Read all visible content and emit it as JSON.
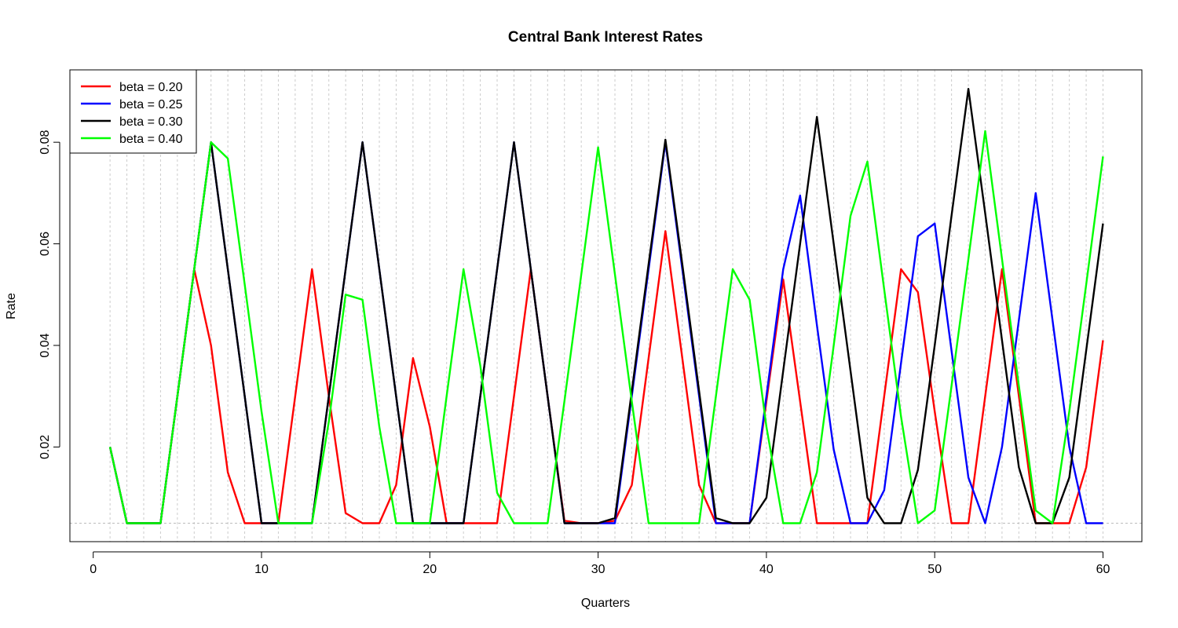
{
  "chart_data": {
    "type": "line",
    "title": "Central Bank Interest Rates",
    "xlabel": "Quarters",
    "ylabel": "Rate",
    "xlim": [
      1,
      60
    ],
    "ylim": [
      0.005,
      0.091
    ],
    "x_ticks": [
      0,
      10,
      20,
      30,
      40,
      50,
      60
    ],
    "y_ticks": [
      0.02,
      0.04,
      0.06,
      0.08
    ],
    "y_tick_labels": [
      "0.02",
      "0.04",
      "0.06",
      "0.08"
    ],
    "grid": "vertical dotted lines at each quarter",
    "reference_line": 0.005,
    "legend_position": "top-left",
    "x": [
      1,
      2,
      3,
      4,
      5,
      6,
      7,
      8,
      9,
      10,
      11,
      12,
      13,
      14,
      15,
      16,
      17,
      18,
      19,
      20,
      21,
      22,
      23,
      24,
      25,
      26,
      27,
      28,
      29,
      30,
      31,
      32,
      33,
      34,
      35,
      36,
      37,
      38,
      39,
      40,
      41,
      42,
      43,
      44,
      45,
      46,
      47,
      48,
      49,
      50,
      51,
      52,
      53,
      54,
      55,
      56,
      57,
      58,
      59,
      60
    ],
    "series": [
      {
        "name": "beta = 0.20",
        "color": "#ff0000",
        "values": [
          0.02,
          0.005,
          0.005,
          0.005,
          0.03,
          0.055,
          0.04,
          0.015,
          0.005,
          0.005,
          0.005,
          0.03,
          0.055,
          0.03,
          0.007,
          0.005,
          0.005,
          0.0125,
          0.0375,
          0.024,
          0.005,
          0.005,
          0.005,
          0.005,
          0.03,
          0.055,
          0.03,
          0.0055,
          0.005,
          0.005,
          0.0055,
          0.0125,
          0.0375,
          0.0625,
          0.0375,
          0.0125,
          0.005,
          0.005,
          0.005,
          0.029,
          0.053,
          0.029,
          0.005,
          0.005,
          0.005,
          0.005,
          0.03,
          0.055,
          0.0505,
          0.027,
          0.005,
          0.005,
          0.03,
          0.055,
          0.03,
          0.005,
          0.005,
          0.005,
          0.016,
          0.041
        ]
      },
      {
        "name": "beta = 0.25",
        "color": "#0000ff",
        "values": [
          0.02,
          0.005,
          0.005,
          0.005,
          0.03,
          0.055,
          0.08,
          0.055,
          0.03,
          0.005,
          0.005,
          0.005,
          0.005,
          0.03,
          0.055,
          0.08,
          0.055,
          0.03,
          0.005,
          0.005,
          0.005,
          0.005,
          0.03,
          0.055,
          0.08,
          0.055,
          0.03,
          0.005,
          0.005,
          0.005,
          0.005,
          0.03,
          0.055,
          0.08,
          0.055,
          0.03,
          0.005,
          0.005,
          0.005,
          0.03,
          0.055,
          0.0695,
          0.044,
          0.0195,
          0.005,
          0.005,
          0.0115,
          0.0365,
          0.0615,
          0.064,
          0.039,
          0.014,
          0.005,
          0.02,
          0.045,
          0.07,
          0.045,
          0.02,
          0.005,
          0.005
        ]
      },
      {
        "name": "beta = 0.30",
        "color": "#000000",
        "values": [
          0.02,
          0.005,
          0.005,
          0.005,
          0.03,
          0.055,
          0.08,
          0.055,
          0.03,
          0.005,
          0.005,
          0.005,
          0.005,
          0.03,
          0.055,
          0.08,
          0.055,
          0.03,
          0.005,
          0.005,
          0.005,
          0.005,
          0.03,
          0.055,
          0.08,
          0.055,
          0.03,
          0.005,
          0.005,
          0.005,
          0.006,
          0.031,
          0.056,
          0.0805,
          0.056,
          0.031,
          0.006,
          0.005,
          0.005,
          0.01,
          0.035,
          0.06,
          0.085,
          0.06,
          0.035,
          0.01,
          0.005,
          0.005,
          0.0155,
          0.04,
          0.0655,
          0.0905,
          0.066,
          0.041,
          0.016,
          0.005,
          0.005,
          0.014,
          0.039,
          0.064
        ]
      },
      {
        "name": "beta = 0.40",
        "color": "#00ff00",
        "values": [
          0.02,
          0.005,
          0.005,
          0.005,
          0.03,
          0.055,
          0.08,
          0.0768,
          0.052,
          0.027,
          0.005,
          0.005,
          0.005,
          0.025,
          0.05,
          0.049,
          0.024,
          0.005,
          0.005,
          0.005,
          0.03,
          0.055,
          0.036,
          0.011,
          0.005,
          0.005,
          0.005,
          0.029,
          0.054,
          0.079,
          0.054,
          0.029,
          0.005,
          0.005,
          0.005,
          0.005,
          0.03,
          0.055,
          0.049,
          0.024,
          0.005,
          0.005,
          0.015,
          0.04,
          0.0655,
          0.0762,
          0.051,
          0.026,
          0.005,
          0.0075,
          0.032,
          0.057,
          0.0822,
          0.057,
          0.032,
          0.0075,
          0.005,
          0.027,
          0.052,
          0.0772
        ]
      }
    ]
  }
}
